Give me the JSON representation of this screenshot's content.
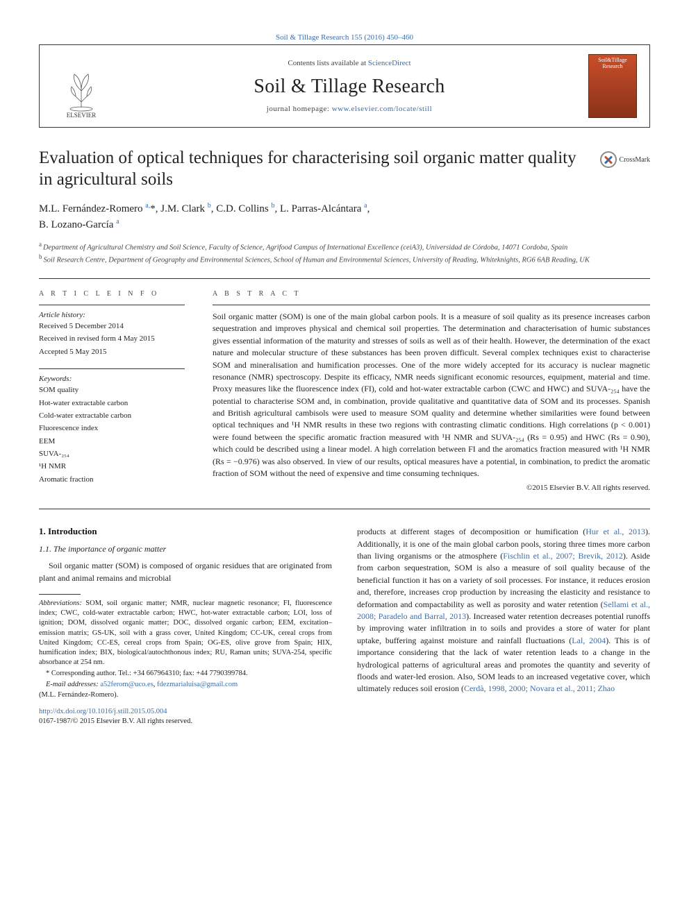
{
  "header": {
    "citation_link": "Soil & Tillage Research 155 (2016) 450–460",
    "contents_prefix": "Contents lists available at ",
    "contents_link": "ScienceDirect",
    "journal_title": "Soil & Tillage Research",
    "homepage_prefix": "journal homepage: ",
    "homepage_link": "www.elsevier.com/locate/still",
    "elsevier_label": "ELSEVIER",
    "cover_title": "Soil&Tillage Research"
  },
  "article": {
    "title": "Evaluation of optical techniques for characterising soil organic matter quality in agricultural soils",
    "crossmark_label": "CrossMark",
    "authors_html": "M.L. Fernández-Romero <sup>a,</sup>*, J.M. Clark <sup>b</sup>, C.D. Collins <sup>b</sup>, L. Parras-Alcántara <sup>a</sup>,<br>B. Lozano-García <sup>a</sup>",
    "affiliations": {
      "a": "Department of Agricultural Chemistry and Soil Science, Faculty of Science, Agrifood Campus of International Excellence (ceiA3), Universidad de Córdoba, 14071 Cordoba, Spain",
      "b": "Soil Research Centre, Department of Geography and Environmental Sciences, School of Human and Environmental Sciences, University of Reading, Whiteknights, RG6 6AB Reading, UK"
    }
  },
  "info": {
    "heading": "A R T I C L E   I N F O",
    "history_label": "Article history:",
    "received": "Received 5 December 2014",
    "revised": "Received in revised form 4 May 2015",
    "accepted": "Accepted 5 May 2015",
    "keywords_label": "Keywords:",
    "keywords": [
      "SOM quality",
      "Hot-water extractable carbon",
      "Cold-water extractable carbon",
      "Fluorescence index",
      "EEM",
      "SUVA-₂₅₄",
      "¹H NMR",
      "Aromatic fraction"
    ]
  },
  "abstract": {
    "heading": "A B S T R A C T",
    "text": "Soil organic matter (SOM) is one of the main global carbon pools. It is a measure of soil quality as its presence increases carbon sequestration and improves physical and chemical soil properties. The determination and characterisation of humic substances gives essential information of the maturity and stresses of soils as well as of their health. However, the determination of the exact nature and molecular structure of these substances has been proven difficult. Several complex techniques exist to characterise SOM and mineralisation and humification processes. One of the more widely accepted for its accuracy is nuclear magnetic resonance (NMR) spectroscopy. Despite its efficacy, NMR needs significant economic resources, equipment, material and time. Proxy measures like the fluorescence index (FI), cold and hot-water extractable carbon (CWC and HWC) and SUVA-₂₅₄ have the potential to characterise SOM and, in combination, provide qualitative and quantitative data of SOM and its processes. Spanish and British agricultural cambisols were used to measure SOM quality and determine whether similarities were found between optical techniques and ¹H NMR results in these two regions with contrasting climatic conditions. High correlations (p < 0.001) were found between the specific aromatic fraction measured with ¹H NMR and SUVA-₂₅₄ (Rs = 0.95) and HWC (Rs = 0.90), which could be described using a linear model. A high correlation between FI and the aromatics fraction measured with ¹H NMR (Rs = −0.976) was also observed. In view of our results, optical measures have a potential, in combination, to predict the aromatic fraction of SOM without the need of expensive and time consuming techniques.",
    "copyright": "©2015 Elsevier B.V. All rights reserved."
  },
  "body": {
    "section1_heading": "1. Introduction",
    "section11_heading": "1.1. The importance of organic matter",
    "col1_para": "Soil organic matter (SOM) is composed of organic residues that are originated from plant and animal remains and microbial",
    "col2_para": "products at different stages of decomposition or humification (Hur et al., 2013). Additionally, it is one of the main global carbon pools, storing three times more carbon than living organisms or the atmosphere (Fischlin et al., 2007; Brevik, 2012). Aside from carbon sequestration, SOM is also a measure of soil quality because of the beneficial function it has on a variety of soil processes. For instance, it reduces erosion and, therefore, increases crop production by increasing the elasticity and resistance to deformation and compactability as well as porosity and water retention (Sellami et al., 2008; Paradelo and Barral, 2013). Increased water retention decreases potential runoffs by improving water infiltration in to soils and provides a store of water for plant uptake, buffering against moisture and rainfall fluctuations (Lal, 2004). This is of importance considering that the lack of water retention leads to a change in the hydrological patterns of agricultural areas and promotes the quantity and severity of floods and water-led erosion. Also, SOM leads to an increased vegetative cover, which ultimately reduces soil erosion (Cerdà, 1998, 2000; Novara et al., 2011; Zhao"
  },
  "footnotes": {
    "abbreviations_label": "Abbreviations:",
    "abbreviations": " SOM, soil organic matter; NMR, nuclear magnetic resonance; FI, fluorescence index; CWC, cold-water extractable carbon; HWC, hot-water extractable carbon; LOI, loss of ignition; DOM, dissolved organic matter; DOC, dissolved organic carbon; EEM, excitation–emission matrix; GS-UK, soil with a grass cover, United Kingdom; CC-UK, cereal crops from United Kingdom; CC-ES, cereal crops from Spain; OG-ES, olive grove from Spain; HIX, humification index; BIX, biological/autochthonous index; RU, Raman units; SUVA-254, specific absorbance at 254 nm.",
    "corresponding": "* Corresponding author. Tel.: +34 667964310; fax: +44 7790399784.",
    "email_label": "E-mail addresses:",
    "email1": "a52ferom@uco.es",
    "email2": "fdezmarialuisa@gmail.com",
    "email_suffix": "(M.L. Fernández-Romero).",
    "doi_link": "http://dx.doi.org/10.1016/j.still.2015.05.004",
    "issn_line": "0167-1987/© 2015 Elsevier B.V. All rights reserved."
  },
  "colors": {
    "link": "#3a6ca8",
    "text": "#222222",
    "cover_bg_top": "#c94e2a",
    "cover_bg_bottom": "#8a3218"
  }
}
